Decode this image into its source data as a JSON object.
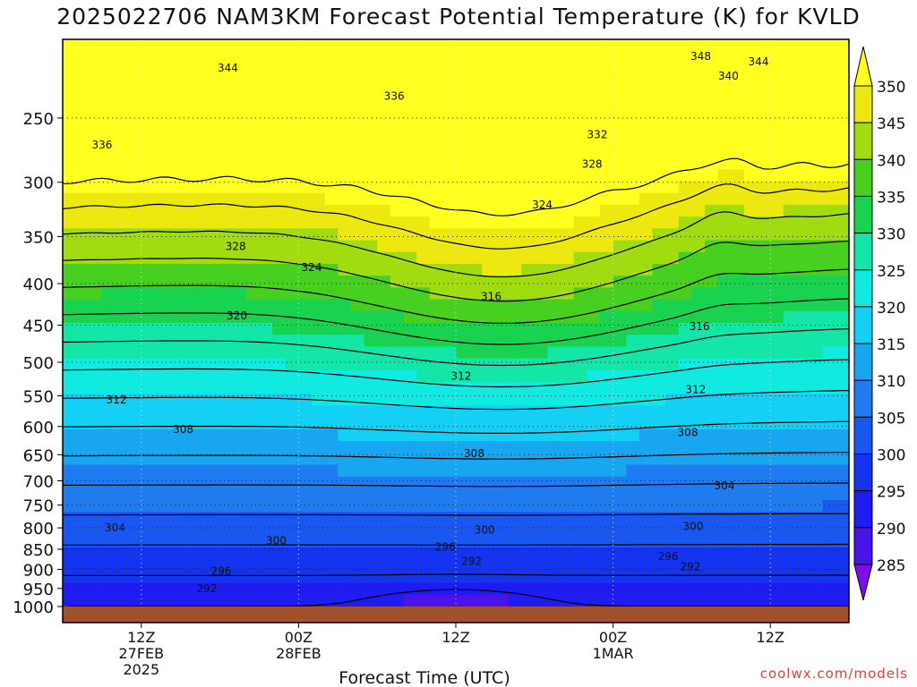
{
  "title": "2025022706 NAM3KM Forecast Potential Temperature (K) for KVLD",
  "credit": "coolwx.com/models",
  "chart_data": {
    "type": "heatmap",
    "title": "2025022706 NAM3KM Forecast Potential Temperature (K) for KVLD",
    "xlabel": "Forecast Time (UTC)",
    "ylabel": "",
    "x_ticks": [
      {
        "hour": 6,
        "lines": [
          "12Z",
          "27FEB",
          "2025"
        ]
      },
      {
        "hour": 18,
        "lines": [
          "00Z",
          "28FEB"
        ]
      },
      {
        "hour": 30,
        "lines": [
          "12Z"
        ]
      },
      {
        "hour": 42,
        "lines": [
          "00Z",
          "1MAR"
        ]
      },
      {
        "hour": 54,
        "lines": [
          "12Z"
        ]
      }
    ],
    "xlim": [
      0,
      60
    ],
    "y_ticks": [
      250,
      300,
      350,
      400,
      450,
      500,
      550,
      600,
      650,
      700,
      750,
      800,
      850,
      900,
      950,
      1000
    ],
    "ylim": [
      1000,
      200
    ],
    "y_scale": "log-pressure",
    "colorbar": {
      "levels": [
        285,
        290,
        295,
        300,
        305,
        310,
        315,
        320,
        325,
        330,
        335,
        340,
        345,
        350
      ],
      "labels": [
        "285",
        "290",
        "295",
        "300",
        "305",
        "310",
        "315",
        "320",
        "325",
        "330",
        "335",
        "340",
        "345",
        "350"
      ],
      "colors": [
        "#7a10e6",
        "#4a14e8",
        "#1e1cf0",
        "#1434f0",
        "#1a56f0",
        "#1e7cf0",
        "#18a6f0",
        "#14d0f4",
        "#10eae0",
        "#14e6a8",
        "#18d250",
        "#48d020",
        "#a0dc10",
        "#ece810",
        "#ffff20"
      ],
      "extend": "both"
    },
    "grid": true,
    "ground_color": "#a0522d",
    "contour_interval": 4,
    "contour_labels": [
      {
        "text": "348",
        "x": "48.7",
        "p": "210"
      },
      {
        "text": "344",
        "x": "53.1",
        "p": "213"
      },
      {
        "text": "344",
        "x": "12.6",
        "p": "217"
      },
      {
        "text": "340",
        "x": "50.8",
        "p": "222"
      },
      {
        "text": "336",
        "x": "25.3",
        "p": "235"
      },
      {
        "text": "336",
        "x": "3.0",
        "p": "270"
      },
      {
        "text": "332",
        "x": "40.8",
        "p": "262"
      },
      {
        "text": "328",
        "x": "40.4",
        "p": "285"
      },
      {
        "text": "324",
        "x": "36.6",
        "p": "320"
      },
      {
        "text": "328",
        "x": "13.2",
        "p": "360"
      },
      {
        "text": "324",
        "x": "19.0",
        "p": "382"
      },
      {
        "text": "316",
        "x": "32.7",
        "p": "415"
      },
      {
        "text": "320",
        "x": "13.3",
        "p": "438"
      },
      {
        "text": "316",
        "x": "48.6",
        "p": "452"
      },
      {
        "text": "312",
        "x": "30.4",
        "p": "520"
      },
      {
        "text": "312",
        "x": "4.1",
        "p": "556"
      },
      {
        "text": "312",
        "x": "48.3",
        "p": "540"
      },
      {
        "text": "308",
        "x": "9.2",
        "p": "605"
      },
      {
        "text": "308",
        "x": "31.4",
        "p": "648"
      },
      {
        "text": "308",
        "x": "47.7",
        "p": "610"
      },
      {
        "text": "304",
        "x": "50.5",
        "p": "710"
      },
      {
        "text": "304",
        "x": "4.0",
        "p": "800"
      },
      {
        "text": "300",
        "x": "32.2",
        "p": "805"
      },
      {
        "text": "300",
        "x": "48.1",
        "p": "797"
      },
      {
        "text": "300",
        "x": "16.3",
        "p": "830"
      },
      {
        "text": "296",
        "x": "29.2",
        "p": "845"
      },
      {
        "text": "296",
        "x": "46.2",
        "p": "868"
      },
      {
        "text": "292",
        "x": "31.2",
        "p": "880"
      },
      {
        "text": "292",
        "x": "47.9",
        "p": "893"
      },
      {
        "text": "296",
        "x": "12.1",
        "p": "905"
      },
      {
        "text": "292",
        "x": "11.0",
        "p": "950"
      }
    ]
  }
}
